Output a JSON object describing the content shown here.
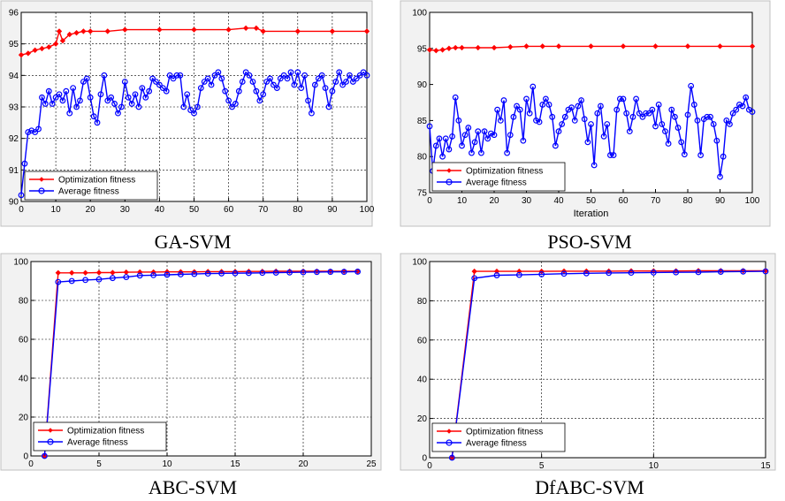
{
  "colors": {
    "optimization": "#ff0000",
    "average": "#0000ff",
    "grid": "#000000",
    "frame": "#b8b8b8"
  },
  "chart_data": [
    {
      "type": "line",
      "caption": "GA-SVM",
      "xlabel": "",
      "ylabel": "",
      "xlim": [
        0,
        100
      ],
      "ylim": [
        90,
        96
      ],
      "xticks": [
        0,
        10,
        20,
        30,
        40,
        50,
        60,
        70,
        80,
        90,
        100
      ],
      "yticks": [
        90,
        91,
        92,
        93,
        94,
        95,
        96
      ],
      "grid": true,
      "legend_position": "bottom-left",
      "series": [
        {
          "name": "Optimization fitness",
          "marker": "diamond",
          "x": [
            0,
            2,
            4,
            6,
            8,
            10,
            11,
            12,
            14,
            16,
            18,
            20,
            25,
            30,
            40,
            50,
            60,
            65,
            68,
            70,
            80,
            90,
            100
          ],
          "y": [
            94.65,
            94.7,
            94.8,
            94.85,
            94.9,
            95.0,
            95.4,
            95.1,
            95.3,
            95.35,
            95.4,
            95.4,
            95.4,
            95.45,
            95.45,
            95.45,
            95.45,
            95.5,
            95.5,
            95.4,
            95.4,
            95.4,
            95.4
          ]
        },
        {
          "name": "Average fitness",
          "marker": "circle",
          "x": [
            0,
            1,
            2,
            3,
            4,
            5,
            6,
            7,
            8,
            9,
            10,
            11,
            12,
            13,
            14,
            15,
            16,
            17,
            18,
            19,
            20,
            21,
            22,
            23,
            24,
            25,
            26,
            27,
            28,
            29,
            30,
            31,
            32,
            33,
            34,
            35,
            36,
            37,
            38,
            39,
            40,
            41,
            42,
            43,
            44,
            45,
            46,
            47,
            48,
            49,
            50,
            51,
            52,
            53,
            54,
            55,
            56,
            57,
            58,
            59,
            60,
            61,
            62,
            63,
            64,
            65,
            66,
            67,
            68,
            69,
            70,
            71,
            72,
            73,
            74,
            75,
            76,
            77,
            78,
            79,
            80,
            81,
            82,
            83,
            84,
            85,
            86,
            87,
            88,
            89,
            90,
            91,
            92,
            93,
            94,
            95,
            96,
            97,
            98,
            99,
            100
          ],
          "y": [
            90.2,
            91.2,
            92.2,
            92.25,
            92.2,
            92.3,
            93.3,
            93.1,
            93.5,
            93.1,
            93.3,
            93.4,
            93.2,
            93.5,
            92.8,
            93.6,
            93.0,
            93.2,
            93.8,
            93.9,
            93.3,
            92.7,
            92.5,
            93.4,
            94.0,
            93.2,
            93.3,
            93.1,
            92.8,
            93.0,
            93.8,
            93.3,
            93.1,
            93.4,
            93.0,
            93.6,
            93.3,
            93.5,
            93.9,
            93.8,
            93.7,
            93.6,
            93.5,
            94.0,
            93.9,
            94.0,
            94.0,
            93.0,
            93.4,
            92.9,
            92.8,
            93.0,
            93.6,
            93.8,
            93.9,
            93.7,
            94.0,
            94.1,
            93.9,
            93.5,
            93.2,
            93.0,
            93.1,
            93.5,
            93.8,
            94.1,
            94.0,
            93.8,
            93.5,
            93.2,
            93.4,
            93.8,
            93.9,
            93.7,
            93.6,
            93.9,
            94.0,
            93.9,
            94.1,
            93.7,
            94.1,
            93.6,
            94.0,
            93.2,
            92.8,
            93.7,
            93.9,
            94.0,
            93.6,
            93.0,
            93.5,
            93.8,
            94.1,
            93.7,
            93.8,
            94.0,
            93.8,
            93.9,
            94.0,
            94.1,
            94.0
          ]
        }
      ]
    },
    {
      "type": "line",
      "caption": "PSO-SVM",
      "xlabel": "Iteration",
      "ylabel": "",
      "xlim": [
        0,
        100
      ],
      "ylim": [
        75,
        100
      ],
      "xticks": [
        0,
        10,
        20,
        30,
        40,
        50,
        60,
        70,
        80,
        90,
        100
      ],
      "yticks": [
        75,
        80,
        85,
        90,
        95,
        100
      ],
      "grid": false,
      "legend_position": "bottom-left",
      "series": [
        {
          "name": "Optimization fitness",
          "marker": "diamond",
          "x": [
            0,
            2,
            4,
            6,
            8,
            10,
            15,
            20,
            25,
            30,
            35,
            40,
            50,
            60,
            70,
            80,
            90,
            100
          ],
          "y": [
            94.8,
            94.7,
            94.8,
            95.0,
            95.1,
            95.1,
            95.1,
            95.1,
            95.2,
            95.3,
            95.3,
            95.3,
            95.3,
            95.3,
            95.3,
            95.3,
            95.3,
            95.3
          ]
        },
        {
          "name": "Average fitness",
          "marker": "circle",
          "x": [
            0,
            1,
            2,
            3,
            4,
            5,
            6,
            7,
            8,
            9,
            10,
            11,
            12,
            13,
            14,
            15,
            16,
            17,
            18,
            19,
            20,
            21,
            22,
            23,
            24,
            25,
            26,
            27,
            28,
            29,
            30,
            31,
            32,
            33,
            34,
            35,
            36,
            37,
            38,
            39,
            40,
            41,
            42,
            43,
            44,
            45,
            46,
            47,
            48,
            49,
            50,
            51,
            52,
            53,
            54,
            55,
            56,
            57,
            58,
            59,
            60,
            61,
            62,
            63,
            64,
            65,
            66,
            67,
            68,
            69,
            70,
            71,
            72,
            73,
            74,
            75,
            76,
            77,
            78,
            79,
            80,
            81,
            82,
            83,
            84,
            85,
            86,
            87,
            88,
            89,
            90,
            91,
            92,
            93,
            94,
            95,
            96,
            97,
            98,
            99,
            100
          ],
          "y": [
            84.2,
            78.0,
            81.5,
            82.5,
            80.0,
            82.5,
            81.0,
            82.8,
            88.2,
            85.0,
            81.5,
            83.0,
            84.0,
            80.5,
            82.0,
            83.5,
            80.5,
            83.5,
            82.5,
            83.2,
            83.0,
            86.5,
            85.0,
            87.8,
            80.5,
            83.0,
            85.5,
            87.0,
            86.5,
            82.2,
            88.0,
            86.0,
            89.7,
            85.0,
            84.8,
            87.2,
            88.0,
            87.2,
            85.5,
            81.5,
            83.5,
            84.5,
            85.5,
            86.5,
            86.8,
            85.0,
            87.0,
            87.8,
            85.2,
            82.0,
            84.5,
            78.8,
            86.0,
            87.0,
            82.8,
            84.5,
            80.2,
            80.2,
            86.5,
            88.0,
            88.0,
            86.0,
            83.5,
            85.5,
            88.0,
            86.0,
            85.5,
            86.0,
            86.0,
            86.5,
            84.2,
            87.2,
            84.5,
            83.5,
            81.8,
            86.5,
            85.5,
            84.0,
            82.0,
            80.3,
            85.8,
            89.8,
            87.2,
            85.0,
            80.2,
            85.2,
            85.5,
            85.5,
            84.5,
            82.2,
            77.2,
            80.0,
            85.0,
            84.5,
            86.0,
            86.5,
            87.2,
            87.0,
            88.2,
            86.5,
            86.2
          ]
        }
      ]
    },
    {
      "type": "line",
      "caption": "ABC-SVM",
      "xlabel": "",
      "ylabel": "",
      "xlim": [
        0,
        25
      ],
      "ylim": [
        0,
        100
      ],
      "xticks": [
        0,
        5,
        10,
        15,
        20,
        25
      ],
      "yticks": [
        0,
        20,
        40,
        60,
        80,
        100
      ],
      "grid": true,
      "legend_position": "bottom-left",
      "series": [
        {
          "name": "Optimization fitness",
          "marker": "diamond",
          "x": [
            1,
            2,
            3,
            4,
            5,
            6,
            7,
            8,
            9,
            10,
            11,
            12,
            13,
            14,
            15,
            16,
            17,
            18,
            19,
            20,
            21,
            22,
            23,
            24
          ],
          "y": [
            0,
            94.2,
            94.2,
            94.2,
            94.3,
            94.3,
            94.5,
            94.6,
            94.6,
            94.7,
            94.7,
            94.7,
            94.8,
            94.8,
            94.8,
            94.9,
            94.9,
            95.0,
            95.0,
            95.0,
            95.0,
            95.0,
            95.0,
            95.0
          ]
        },
        {
          "name": "Average fitness",
          "marker": "circle",
          "x": [
            1,
            2,
            3,
            4,
            5,
            6,
            7,
            8,
            9,
            10,
            11,
            12,
            13,
            14,
            15,
            16,
            17,
            18,
            19,
            20,
            21,
            22,
            23,
            24
          ],
          "y": [
            0,
            89.5,
            90.0,
            90.5,
            90.8,
            91.5,
            92.0,
            92.8,
            93.0,
            93.2,
            93.4,
            93.6,
            93.8,
            93.9,
            94.0,
            94.1,
            94.2,
            94.3,
            94.4,
            94.5,
            94.6,
            94.7,
            94.7,
            94.8
          ]
        }
      ]
    },
    {
      "type": "line",
      "caption": "DfABC-SVM",
      "xlabel": "",
      "ylabel": "",
      "xlim": [
        0,
        15
      ],
      "ylim": [
        0,
        100
      ],
      "xticks": [
        0,
        5,
        10,
        15
      ],
      "yticks": [
        0,
        20,
        40,
        60,
        80,
        100
      ],
      "grid": true,
      "legend_position": "bottom-left",
      "series": [
        {
          "name": "Optimization fitness",
          "marker": "diamond",
          "x": [
            1,
            2,
            3,
            4,
            5,
            6,
            7,
            8,
            9,
            10,
            11,
            12,
            13,
            14,
            15
          ],
          "y": [
            0,
            95.0,
            95.0,
            95.0,
            95.0,
            95.1,
            95.1,
            95.1,
            95.2,
            95.2,
            95.2,
            95.3,
            95.3,
            95.3,
            95.3
          ]
        },
        {
          "name": "Average fitness",
          "marker": "circle",
          "x": [
            1,
            2,
            3,
            4,
            5,
            6,
            7,
            8,
            9,
            10,
            11,
            12,
            13,
            14,
            15
          ],
          "y": [
            0,
            91.5,
            93.0,
            93.2,
            93.5,
            93.8,
            94.0,
            94.2,
            94.3,
            94.4,
            94.5,
            94.6,
            94.8,
            94.9,
            95.0
          ]
        }
      ]
    }
  ]
}
